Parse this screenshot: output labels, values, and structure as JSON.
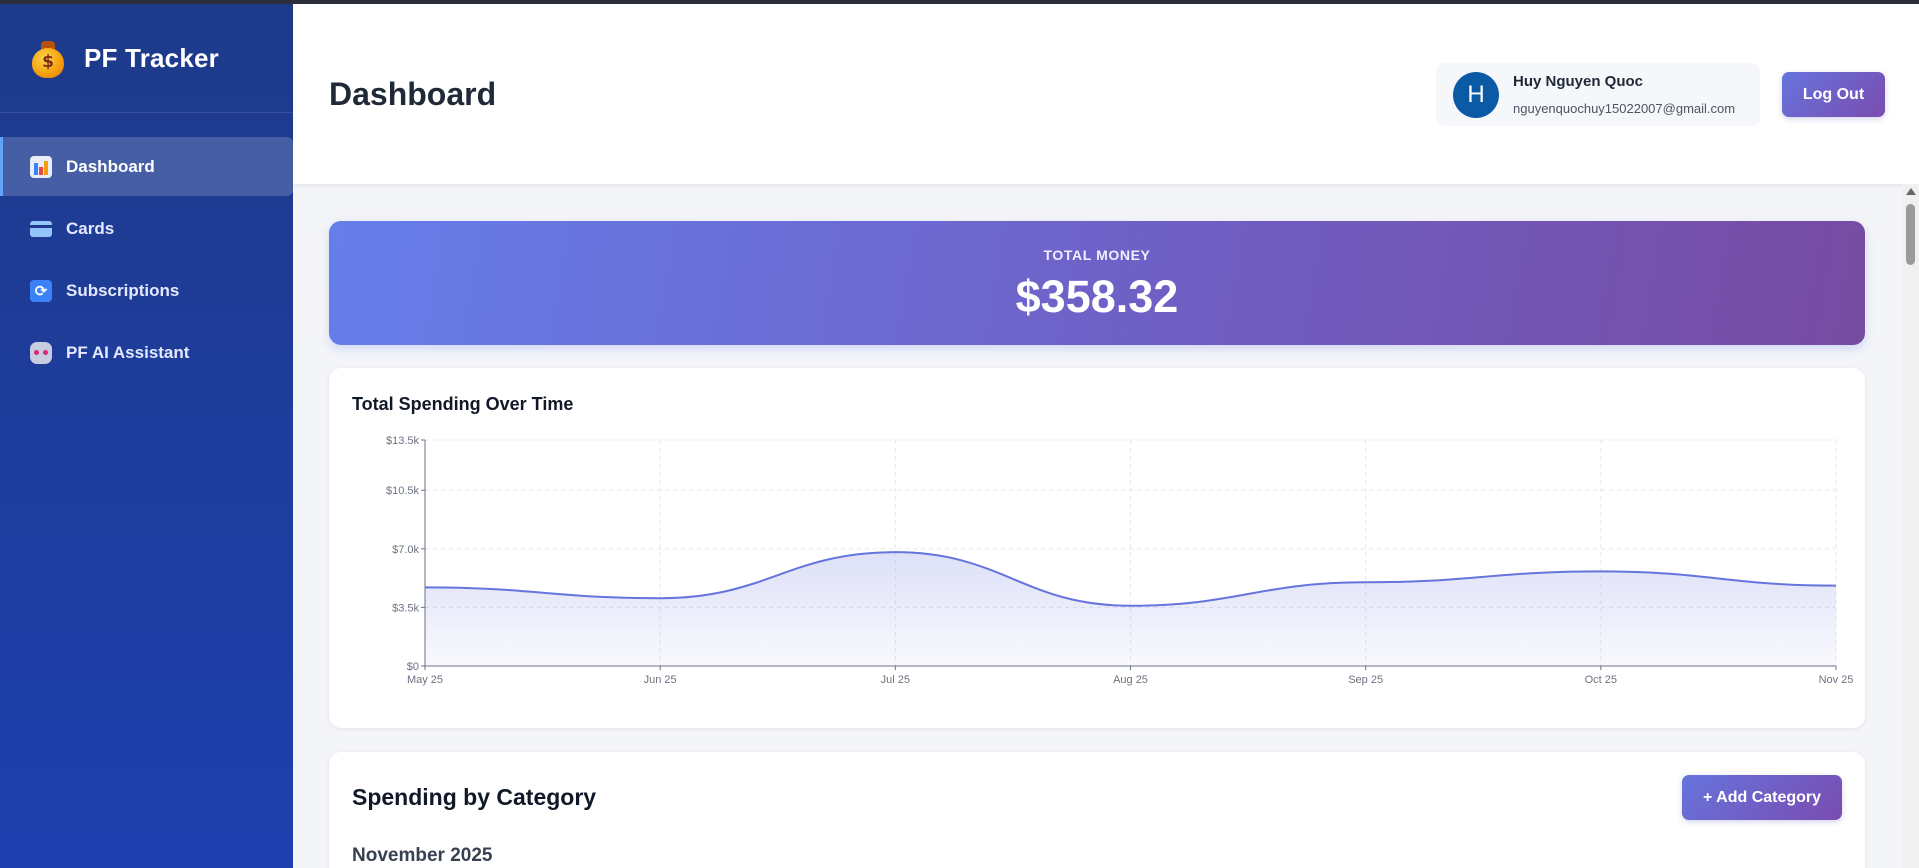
{
  "app": {
    "title": "PF Tracker",
    "logo_icon": "money-bag-icon"
  },
  "sidebar": {
    "items": [
      {
        "label": "Dashboard",
        "icon": "bar-chart-icon",
        "active": true
      },
      {
        "label": "Cards",
        "icon": "credit-card-icon",
        "active": false
      },
      {
        "label": "Subscriptions",
        "icon": "sync-icon",
        "active": false
      },
      {
        "label": "PF AI Assistant",
        "icon": "robot-icon",
        "active": false
      }
    ]
  },
  "header": {
    "title": "Dashboard",
    "user": {
      "initial": "H",
      "name": "Huy Nguyen Quoc",
      "email": "nguyenquochuy15022007@gmail.com"
    },
    "logout_label": "Log Out"
  },
  "total": {
    "label": "TOTAL MONEY",
    "value": "$358.32"
  },
  "chart": {
    "title": "Total Spending Over Time"
  },
  "chart_data": {
    "type": "area",
    "title": "Total Spending Over Time",
    "x": [
      "May 25",
      "Jun 25",
      "Jul 25",
      "Aug 25",
      "Sep 25",
      "Oct 25",
      "Nov 25"
    ],
    "y_ticks": [
      "$0",
      "$3.5k",
      "$7.0k",
      "$10.5k",
      "$13.5k"
    ],
    "y_tick_values": [
      0,
      3500,
      7000,
      10500,
      13500
    ],
    "ylim": [
      0,
      13500
    ],
    "series": [
      {
        "values": [
          4700,
          4050,
          6800,
          3600,
          5000,
          5650,
          4800
        ]
      }
    ],
    "grid": true,
    "colors": {
      "line": "#6674dd",
      "fill": "#e7e9fb"
    }
  },
  "categories_section": {
    "title": "Spending by Category",
    "add_label": "+ Add Category",
    "month": "November 2025"
  }
}
